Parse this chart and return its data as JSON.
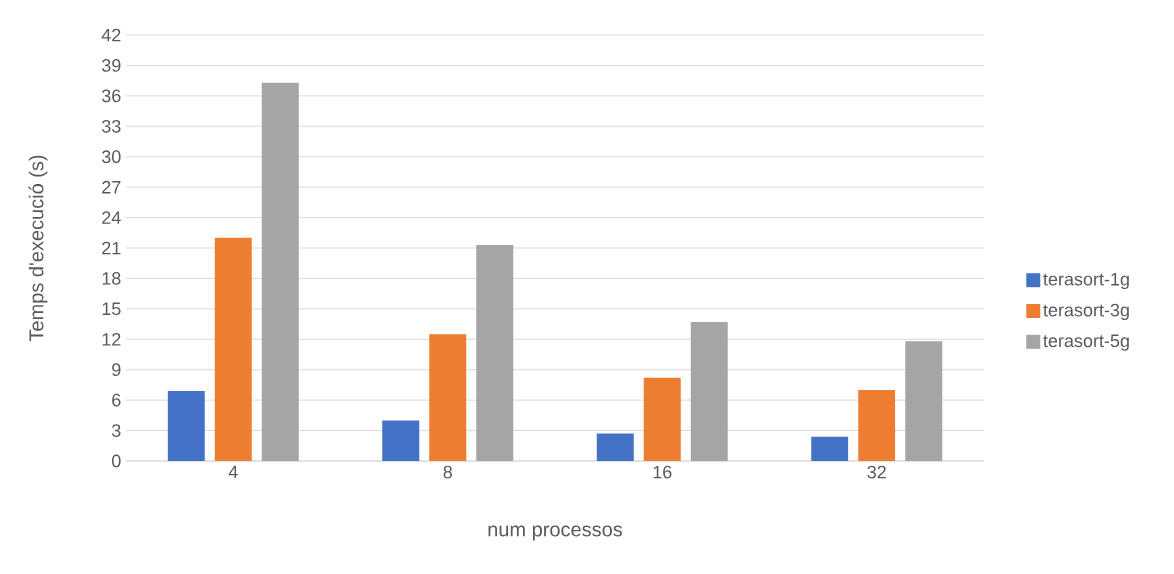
{
  "chart_data": {
    "type": "bar",
    "xlabel": "num processos",
    "ylabel": "Temps d'execució (s)",
    "categories": [
      "4",
      "8",
      "16",
      "32"
    ],
    "series": [
      {
        "name": "terasort-1g",
        "color": "#4472c4",
        "values": [
          6.9,
          4.0,
          2.7,
          2.4
        ]
      },
      {
        "name": "terasort-3g",
        "color": "#ed7d31",
        "values": [
          22.0,
          12.5,
          8.2,
          7.0
        ]
      },
      {
        "name": "terasort-5g",
        "color": "#a5a5a5",
        "values": [
          37.3,
          21.3,
          13.7,
          11.8
        ]
      }
    ],
    "ylim": [
      0,
      42
    ],
    "yticks": [
      0,
      3,
      6,
      9,
      12,
      15,
      18,
      21,
      24,
      27,
      30,
      33,
      36,
      39,
      42
    ],
    "grid": "y",
    "legend": "right"
  }
}
